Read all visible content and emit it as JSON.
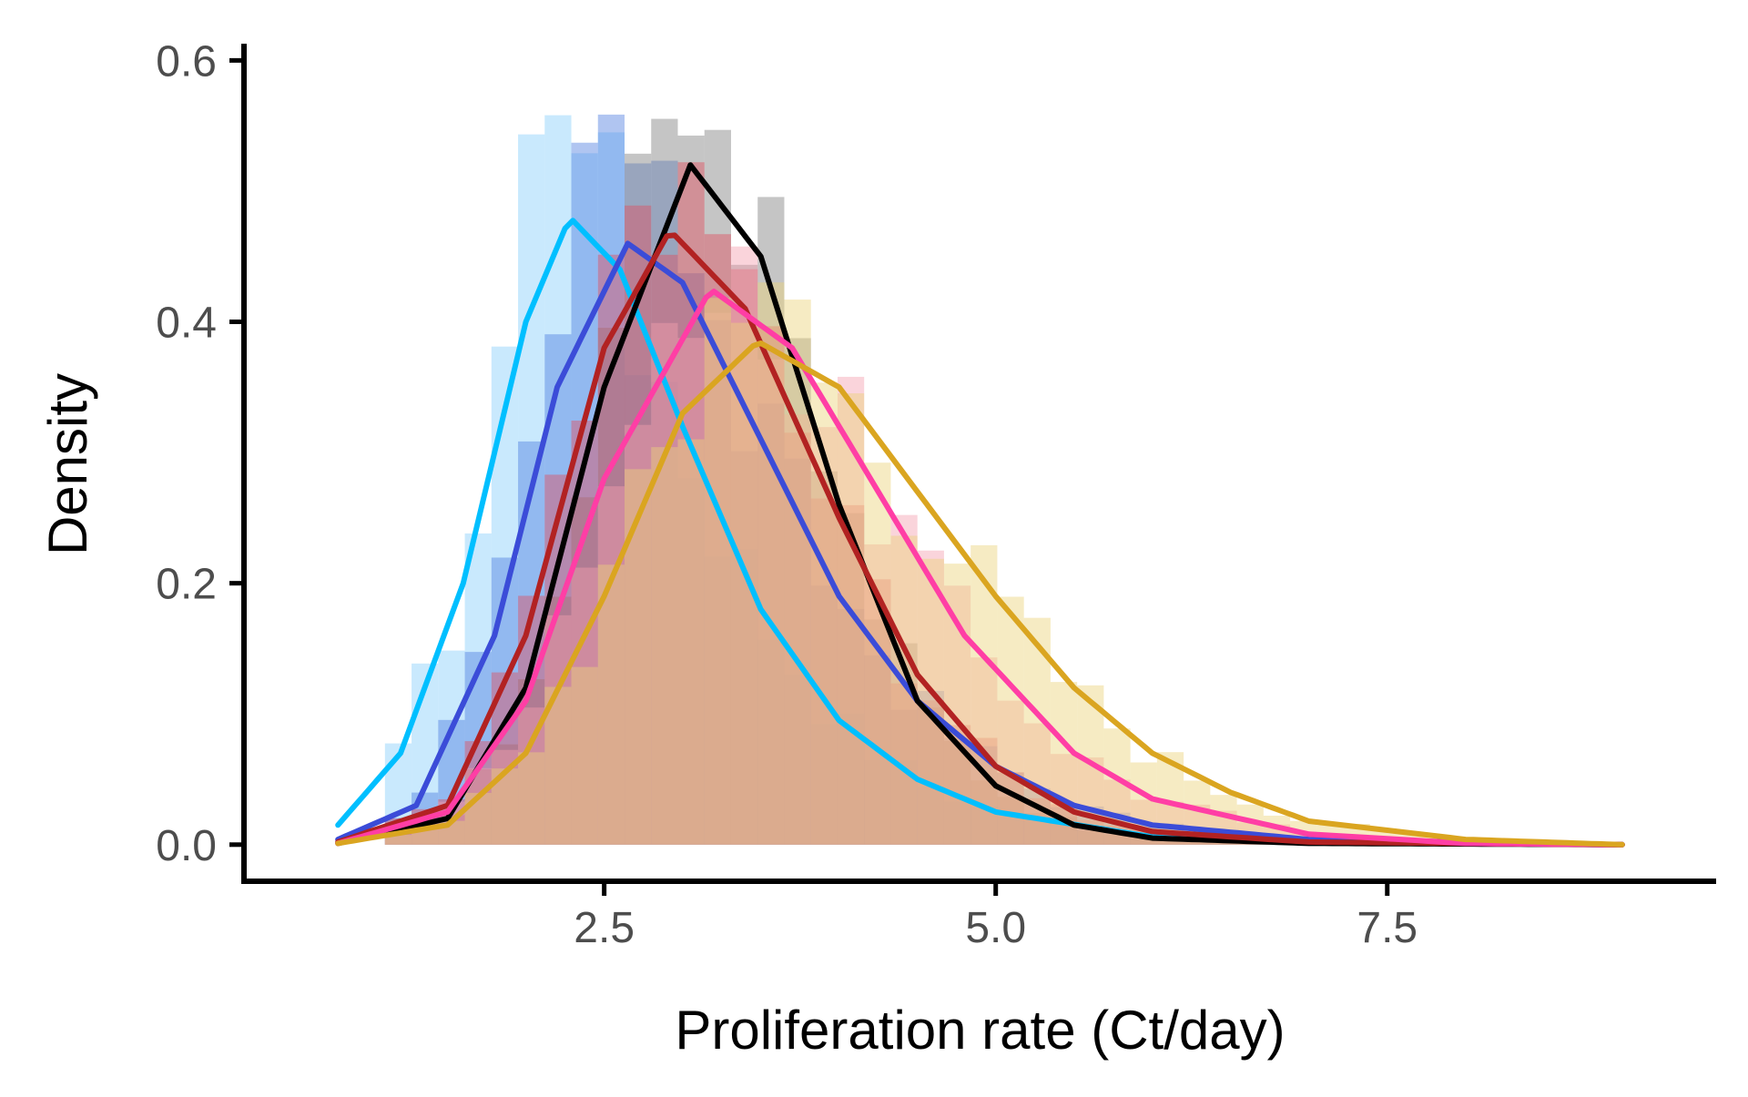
{
  "chart_data": {
    "type": "area",
    "title": "",
    "xlabel": "Proliferation rate (Ct/day)",
    "ylabel": "Density",
    "xlim": [
      0.2,
      9.6
    ],
    "ylim": [
      -0.028,
      0.61
    ],
    "x_ticks": [
      2.5,
      5.0,
      7.5
    ],
    "x_tick_labels": [
      "2.5",
      "5.0",
      "7.5"
    ],
    "y_ticks": [
      0.0,
      0.2,
      0.4,
      0.6
    ],
    "y_tick_labels": [
      "0.0",
      "0.2",
      "0.4",
      "0.6"
    ],
    "grid": false,
    "legend": "none",
    "histogram_bin_width": 0.17,
    "series": [
      {
        "color": "#00BFFF",
        "hist_color": "#87CEFA",
        "density_peak": {
          "x": 2.28,
          "y": 0.48
        },
        "density_curve": [
          [
            0.8,
            0.015
          ],
          [
            1.2,
            0.07
          ],
          [
            1.6,
            0.2
          ],
          [
            2.0,
            0.4
          ],
          [
            2.28,
            0.48
          ],
          [
            2.6,
            0.44
          ],
          [
            3.0,
            0.32
          ],
          [
            3.5,
            0.18
          ],
          [
            4.0,
            0.095
          ],
          [
            4.5,
            0.05
          ],
          [
            5.0,
            0.025
          ],
          [
            6.0,
            0.006
          ],
          [
            7.0,
            0.002
          ],
          [
            9.0,
            0.0
          ]
        ],
        "hist_peak": 0.58
      },
      {
        "color": "#3B4CD8",
        "hist_color": "#4F7FE0",
        "density_peak": {
          "x": 2.65,
          "y": 0.46
        },
        "density_curve": [
          [
            0.8,
            0.004
          ],
          [
            1.3,
            0.03
          ],
          [
            1.8,
            0.16
          ],
          [
            2.2,
            0.35
          ],
          [
            2.65,
            0.46
          ],
          [
            3.0,
            0.43
          ],
          [
            3.5,
            0.31
          ],
          [
            4.0,
            0.19
          ],
          [
            4.5,
            0.11
          ],
          [
            5.0,
            0.06
          ],
          [
            5.5,
            0.03
          ],
          [
            6.0,
            0.015
          ],
          [
            7.0,
            0.004
          ],
          [
            9.0,
            0.0
          ]
        ],
        "hist_peak": 0.56
      },
      {
        "color": "#000000",
        "hist_color": "#7F7F7F",
        "density_peak": {
          "x": 3.05,
          "y": 0.52
        },
        "density_curve": [
          [
            0.8,
            0.001
          ],
          [
            1.5,
            0.02
          ],
          [
            2.0,
            0.12
          ],
          [
            2.5,
            0.35
          ],
          [
            3.05,
            0.52
          ],
          [
            3.5,
            0.45
          ],
          [
            4.0,
            0.26
          ],
          [
            4.5,
            0.11
          ],
          [
            5.0,
            0.045
          ],
          [
            5.5,
            0.015
          ],
          [
            6.0,
            0.005
          ],
          [
            7.0,
            0.001
          ],
          [
            9.0,
            0.0
          ]
        ],
        "hist_peak": 0.58
      },
      {
        "color": "#B22222",
        "hist_color": "#E05060",
        "density_peak": {
          "x": 2.92,
          "y": 0.47
        },
        "density_curve": [
          [
            0.8,
            0.002
          ],
          [
            1.5,
            0.03
          ],
          [
            2.0,
            0.16
          ],
          [
            2.5,
            0.38
          ],
          [
            2.92,
            0.47
          ],
          [
            3.4,
            0.41
          ],
          [
            4.0,
            0.25
          ],
          [
            4.5,
            0.13
          ],
          [
            5.0,
            0.06
          ],
          [
            5.5,
            0.025
          ],
          [
            6.0,
            0.01
          ],
          [
            7.0,
            0.002
          ],
          [
            9.0,
            0.0
          ]
        ],
        "hist_peak": 0.5
      },
      {
        "color": "#FF3EA5",
        "hist_color": "#F4A0B0",
        "density_peak": {
          "x": 3.18,
          "y": 0.425
        },
        "density_curve": [
          [
            0.8,
            0.001
          ],
          [
            1.5,
            0.025
          ],
          [
            2.0,
            0.11
          ],
          [
            2.5,
            0.28
          ],
          [
            3.18,
            0.425
          ],
          [
            3.7,
            0.38
          ],
          [
            4.2,
            0.28
          ],
          [
            4.8,
            0.16
          ],
          [
            5.5,
            0.07
          ],
          [
            6.0,
            0.035
          ],
          [
            7.0,
            0.008
          ],
          [
            8.0,
            0.001
          ],
          [
            9.0,
            0.0
          ]
        ],
        "hist_peak": 0.4
      },
      {
        "color": "#DAA520",
        "hist_color": "#EBD27A",
        "density_peak": {
          "x": 3.48,
          "y": 0.385
        },
        "density_curve": [
          [
            0.8,
            0.001
          ],
          [
            1.5,
            0.015
          ],
          [
            2.0,
            0.07
          ],
          [
            2.5,
            0.19
          ],
          [
            3.0,
            0.33
          ],
          [
            3.48,
            0.385
          ],
          [
            4.0,
            0.35
          ],
          [
            4.5,
            0.27
          ],
          [
            5.0,
            0.19
          ],
          [
            5.5,
            0.12
          ],
          [
            6.0,
            0.07
          ],
          [
            6.5,
            0.04
          ],
          [
            7.0,
            0.018
          ],
          [
            8.0,
            0.004
          ],
          [
            9.0,
            0.0
          ]
        ],
        "hist_peak": 0.44
      }
    ]
  }
}
